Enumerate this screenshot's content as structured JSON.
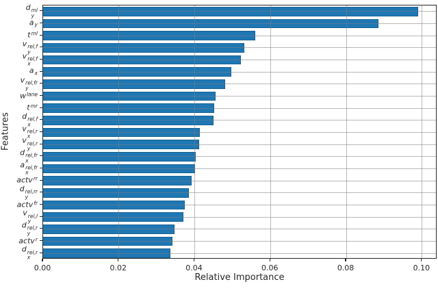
{
  "figure": {
    "background": "#ffffff",
    "bar_color": "#1f77b4",
    "bar_edge_color": "#18618f",
    "grid_color": "#b0b0b0",
    "spine_color": "#262626",
    "text_color": "#262626"
  },
  "chart_data": {
    "type": "bar",
    "orientation": "horizontal",
    "title": "",
    "xlabel": "Relative Importance",
    "ylabel": "Features",
    "xlim": [
      0,
      0.104
    ],
    "grid": true,
    "legend": false,
    "xticks": [
      0.0,
      0.02,
      0.04,
      0.06,
      0.08,
      0.1
    ],
    "xtick_labels": [
      "0.00",
      "0.02",
      "0.04",
      "0.06",
      "0.08",
      "0.10"
    ],
    "categories": [
      "d_y^ml",
      "a_y",
      "t^ml",
      "v_y^rel,f",
      "v_x^rel,f",
      "a_x",
      "v_y^rel,fr",
      "w^lane",
      "t^mr",
      "d_x^rel,f",
      "v_x^rel,r",
      "v_y^rel,r",
      "d_x^rel,fr",
      "a_x^rel,fr",
      "actv^rr",
      "d_y^rel,rr",
      "actv^fr",
      "v_y^rel,l",
      "d_y^rel,r",
      "actv^r",
      "d_x^rel,r"
    ],
    "label_parts": [
      {
        "base": "d",
        "sub": "y",
        "sup": "ml"
      },
      {
        "base": "a",
        "sub": "y",
        "sup": ""
      },
      {
        "base": "t",
        "sub": "",
        "sup": "ml"
      },
      {
        "base": "v",
        "sub": "y",
        "sup": "rel,f"
      },
      {
        "base": "v",
        "sub": "x",
        "sup": "rel,f"
      },
      {
        "base": "a",
        "sub": "x",
        "sup": ""
      },
      {
        "base": "v",
        "sub": "y",
        "sup": "rel,fr"
      },
      {
        "base": "w",
        "sub": "",
        "sup": "lane"
      },
      {
        "base": "t",
        "sub": "",
        "sup": "mr"
      },
      {
        "base": "d",
        "sub": "x",
        "sup": "rel,f"
      },
      {
        "base": "v",
        "sub": "x",
        "sup": "rel,r"
      },
      {
        "base": "v",
        "sub": "y",
        "sup": "rel,r"
      },
      {
        "base": "d",
        "sub": "x",
        "sup": "rel,fr"
      },
      {
        "base": "a",
        "sub": "x",
        "sup": "rel,fr"
      },
      {
        "base": "actv",
        "sub": "",
        "sup": "rr"
      },
      {
        "base": "d",
        "sub": "y",
        "sup": "rel,rr"
      },
      {
        "base": "actv",
        "sub": "",
        "sup": "fr"
      },
      {
        "base": "v",
        "sub": "y",
        "sup": "rel,l"
      },
      {
        "base": "d",
        "sub": "y",
        "sup": "rel,r"
      },
      {
        "base": "actv",
        "sub": "",
        "sup": "r"
      },
      {
        "base": "d",
        "sub": "x",
        "sup": "rel,r"
      }
    ],
    "values": [
      0.099,
      0.0885,
      0.0559,
      0.053,
      0.0521,
      0.0497,
      0.0481,
      0.0455,
      0.0452,
      0.0449,
      0.0414,
      0.0411,
      0.0403,
      0.0401,
      0.0391,
      0.0384,
      0.0373,
      0.0371,
      0.0346,
      0.0342,
      0.0336
    ]
  }
}
